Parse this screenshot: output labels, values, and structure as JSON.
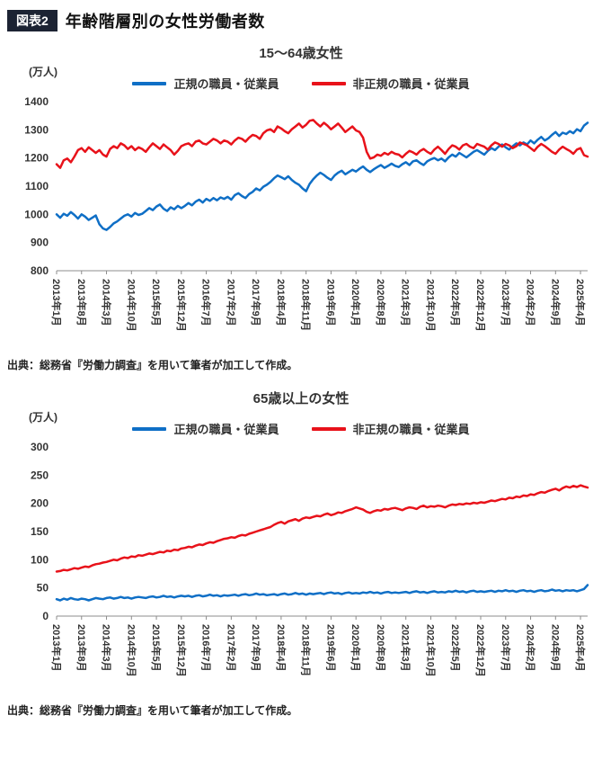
{
  "header": {
    "badge": "図表2",
    "title": "年齢階層別の女性労働者数"
  },
  "chart_data": [
    {
      "type": "line",
      "title": "15〜64歳女性",
      "unit": "(万人)",
      "ylim": [
        800,
        1400
      ],
      "ytick_step": 100,
      "grid": false,
      "legend_position": "top",
      "x_tick_interval": 7,
      "x_tick_labels": [
        "2013年1月",
        "2013年8月",
        "2014年3月",
        "2014年10月",
        "2015年5月",
        "2015年12月",
        "2016年7月",
        "2017年2月",
        "2017年9月",
        "2018年4月",
        "2018年11月",
        "2019年6月",
        "2020年1月",
        "2020年8月",
        "2021年3月",
        "2021年10月",
        "2022年5月",
        "2022年12月",
        "2023年7月",
        "2024年2月",
        "2024年9月",
        "2025年4月"
      ],
      "series": [
        {
          "name": "正規の職員・従業員",
          "color": "#0f6fc6",
          "values": [
            1000,
            988,
            1002,
            995,
            1008,
            998,
            985,
            1000,
            992,
            980,
            988,
            996,
            965,
            950,
            945,
            955,
            968,
            975,
            985,
            995,
            1000,
            992,
            1005,
            998,
            1002,
            1012,
            1022,
            1015,
            1028,
            1035,
            1020,
            1012,
            1025,
            1018,
            1030,
            1022,
            1030,
            1040,
            1032,
            1045,
            1052,
            1042,
            1055,
            1048,
            1058,
            1050,
            1060,
            1055,
            1062,
            1052,
            1068,
            1075,
            1065,
            1058,
            1072,
            1080,
            1092,
            1085,
            1098,
            1105,
            1115,
            1128,
            1138,
            1132,
            1125,
            1135,
            1122,
            1112,
            1105,
            1092,
            1082,
            1108,
            1125,
            1138,
            1148,
            1140,
            1130,
            1122,
            1138,
            1148,
            1155,
            1142,
            1150,
            1158,
            1152,
            1162,
            1170,
            1158,
            1150,
            1160,
            1168,
            1175,
            1165,
            1172,
            1180,
            1172,
            1168,
            1178,
            1185,
            1175,
            1188,
            1192,
            1182,
            1175,
            1188,
            1195,
            1200,
            1192,
            1198,
            1188,
            1202,
            1212,
            1205,
            1218,
            1210,
            1202,
            1212,
            1222,
            1228,
            1220,
            1212,
            1225,
            1235,
            1228,
            1240,
            1248,
            1238,
            1230,
            1242,
            1252,
            1245,
            1255,
            1248,
            1262,
            1252,
            1265,
            1275,
            1262,
            1270,
            1282,
            1292,
            1278,
            1290,
            1285,
            1295,
            1288,
            1302,
            1295,
            1315,
            1325
          ]
        },
        {
          "name": "非正規の職員・従業員",
          "color": "#e8121a",
          "values": [
            1178,
            1165,
            1192,
            1198,
            1185,
            1205,
            1228,
            1235,
            1222,
            1238,
            1228,
            1218,
            1228,
            1212,
            1205,
            1232,
            1242,
            1235,
            1252,
            1245,
            1232,
            1242,
            1228,
            1238,
            1232,
            1222,
            1238,
            1252,
            1242,
            1232,
            1248,
            1238,
            1228,
            1212,
            1225,
            1242,
            1248,
            1252,
            1242,
            1258,
            1262,
            1252,
            1248,
            1258,
            1268,
            1262,
            1252,
            1262,
            1258,
            1248,
            1262,
            1272,
            1268,
            1258,
            1272,
            1282,
            1278,
            1268,
            1288,
            1298,
            1302,
            1292,
            1312,
            1305,
            1295,
            1288,
            1302,
            1312,
            1322,
            1308,
            1318,
            1332,
            1335,
            1322,
            1312,
            1325,
            1315,
            1302,
            1312,
            1322,
            1308,
            1292,
            1302,
            1312,
            1298,
            1292,
            1272,
            1222,
            1198,
            1202,
            1212,
            1208,
            1218,
            1212,
            1222,
            1215,
            1212,
            1202,
            1215,
            1225,
            1220,
            1212,
            1225,
            1232,
            1222,
            1215,
            1230,
            1240,
            1228,
            1215,
            1232,
            1245,
            1240,
            1230,
            1245,
            1250,
            1240,
            1235,
            1250,
            1245,
            1240,
            1230,
            1245,
            1255,
            1250,
            1240,
            1250,
            1245,
            1235,
            1242,
            1255,
            1250,
            1245,
            1235,
            1225,
            1240,
            1250,
            1242,
            1232,
            1222,
            1215,
            1230,
            1240,
            1232,
            1225,
            1215,
            1230,
            1235,
            1210,
            1205
          ]
        }
      ],
      "source": "出典：総務省『労働力調査』を用いて筆者が加工して作成。"
    },
    {
      "type": "line",
      "title": "65歳以上の女性",
      "unit": "(万人)",
      "ylim": [
        0,
        300
      ],
      "ytick_step": 50,
      "grid": false,
      "legend_position": "top",
      "x_tick_interval": 7,
      "x_tick_labels": [
        "2013年1月",
        "2013年8月",
        "2014年3月",
        "2014年10月",
        "2015年5月",
        "2015年12月",
        "2016年7月",
        "2017年2月",
        "2017年9月",
        "2018年4月",
        "2018年11月",
        "2019年6月",
        "2020年1月",
        "2020年8月",
        "2021年3月",
        "2021年10月",
        "2022年5月",
        "2022年12月",
        "2023年7月",
        "2024年2月",
        "2024年9月",
        "2025年4月"
      ],
      "series": [
        {
          "name": "正規の職員・従業員",
          "color": "#0f6fc6",
          "values": [
            30,
            28,
            31,
            29,
            32,
            30,
            29,
            31,
            30,
            28,
            30,
            32,
            31,
            30,
            32,
            33,
            31,
            32,
            34,
            32,
            33,
            31,
            33,
            34,
            33,
            32,
            34,
            35,
            33,
            34,
            36,
            34,
            35,
            33,
            35,
            36,
            35,
            36,
            34,
            36,
            37,
            35,
            36,
            38,
            36,
            37,
            35,
            37,
            36,
            37,
            38,
            36,
            38,
            39,
            37,
            38,
            40,
            38,
            39,
            37,
            38,
            39,
            37,
            39,
            40,
            38,
            39,
            41,
            39,
            40,
            38,
            40,
            39,
            40,
            41,
            39,
            41,
            42,
            40,
            41,
            39,
            41,
            42,
            40,
            41,
            40,
            42,
            41,
            43,
            41,
            42,
            40,
            42,
            43,
            41,
            42,
            41,
            42,
            43,
            41,
            43,
            44,
            42,
            43,
            41,
            43,
            44,
            42,
            43,
            42,
            44,
            43,
            45,
            43,
            44,
            42,
            44,
            45,
            43,
            44,
            43,
            44,
            45,
            43,
            45,
            44,
            46,
            44,
            45,
            43,
            45,
            46,
            44,
            45,
            43,
            45,
            46,
            44,
            45,
            47,
            45,
            46,
            44,
            46,
            45,
            46,
            44,
            46,
            48,
            55
          ]
        },
        {
          "name": "非正規の職員・従業員",
          "color": "#e8121a",
          "values": [
            79,
            80,
            82,
            81,
            83,
            85,
            84,
            86,
            88,
            87,
            90,
            92,
            93,
            95,
            96,
            98,
            100,
            99,
            102,
            104,
            103,
            106,
            105,
            108,
            107,
            109,
            111,
            110,
            112,
            114,
            113,
            116,
            115,
            118,
            117,
            120,
            121,
            123,
            122,
            125,
            127,
            126,
            129,
            131,
            130,
            133,
            135,
            137,
            138,
            140,
            139,
            142,
            144,
            143,
            146,
            148,
            150,
            152,
            154,
            156,
            158,
            162,
            165,
            167,
            164,
            168,
            170,
            172,
            169,
            173,
            175,
            174,
            176,
            178,
            177,
            180,
            182,
            179,
            181,
            184,
            183,
            186,
            188,
            190,
            193,
            191,
            189,
            185,
            183,
            186,
            188,
            187,
            190,
            189,
            191,
            192,
            190,
            188,
            191,
            193,
            192,
            190,
            194,
            196,
            193,
            195,
            194,
            196,
            195,
            193,
            196,
            198,
            197,
            199,
            198,
            200,
            199,
            201,
            200,
            202,
            201,
            203,
            205,
            204,
            206,
            208,
            207,
            210,
            209,
            212,
            211,
            214,
            213,
            216,
            215,
            218,
            220,
            219,
            222,
            224,
            226,
            223,
            227,
            230,
            228,
            231,
            229,
            232,
            230,
            228
          ]
        }
      ],
      "source": "出典：総務省『労働力調査』を用いて筆者が加工して作成。"
    }
  ]
}
